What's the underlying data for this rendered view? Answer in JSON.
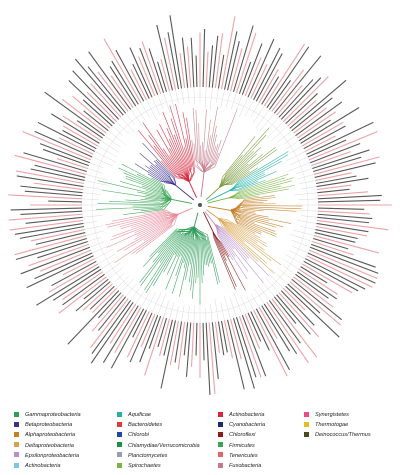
{
  "legend": {
    "columns": [
      [
        {
          "label": "Gammaproteobacteria",
          "color": "#2e9e5a"
        },
        {
          "label": "Betaproteobacteria",
          "color": "#3b2f8f"
        },
        {
          "label": "Alphaproteobacteria",
          "color": "#c77f24"
        },
        {
          "label": "Deltaproteobacteria",
          "color": "#d9a24a"
        },
        {
          "label": "Epsilonproteobacteria",
          "color": "#b88fc9"
        },
        {
          "label": "Actinobacteria",
          "color": "#7fc6e8"
        }
      ],
      [
        {
          "label": "Aquificae",
          "color": "#22b3a5"
        },
        {
          "label": "Bacteroidetes",
          "color": "#e23a3a"
        },
        {
          "label": "Chlorobi",
          "color": "#2048a8"
        },
        {
          "label": "Chlamydiae/Verrucomicrobia",
          "color": "#1f8f46"
        },
        {
          "label": "Planctomycetes",
          "color": "#9aa0a6"
        },
        {
          "label": "Spirochaetes",
          "color": "#7cb342"
        }
      ],
      [
        {
          "label": "Actinobacteria",
          "color": "#d7263d"
        },
        {
          "label": "Cyanobacteria",
          "color": "#1a2a6c"
        },
        {
          "label": "Chloroflexi",
          "color": "#8b1a1a"
        },
        {
          "label": "Firmicutes",
          "color": "#3aa655"
        },
        {
          "label": "Tenericutes",
          "color": "#e06666"
        },
        {
          "label": "Fusobacteria",
          "color": "#c47a8a"
        }
      ],
      [
        {
          "label": "Synergistetes",
          "color": "#e84a8a"
        },
        {
          "label": "Thermotogae",
          "color": "#e3c01c"
        },
        {
          "label": "Deinococcus/Thermus",
          "color": "#4a4a1a"
        }
      ]
    ]
  },
  "tree": {
    "leaf_count": 240,
    "tip_colors": [
      "#e8858a",
      "#222222",
      "#e8858a",
      "#222222",
      "#222222"
    ],
    "clades": [
      {
        "name": "Gammaproteobacteria",
        "color": "#2e9e5a",
        "start_deg": 165,
        "end_deg": 225
      },
      {
        "name": "Firmicutes",
        "color": "#3aa655",
        "start_deg": 262,
        "end_deg": 300
      },
      {
        "name": "Tenericutes",
        "color": "#e88a9a",
        "start_deg": 232,
        "end_deg": 262
      },
      {
        "name": "Betaproteobacteria",
        "color": "#3b2f8f",
        "start_deg": 300,
        "end_deg": 318
      },
      {
        "name": "Actinobacteria",
        "color": "#d7263d",
        "start_deg": 318,
        "end_deg": 352
      },
      {
        "name": "Fusobacteria",
        "color": "#c47a8a",
        "start_deg": 352,
        "end_deg": 382
      },
      {
        "name": "Chlamydiae/Verrucomicrobia",
        "color": "#7a9a3a",
        "start_deg": 38,
        "end_deg": 58
      },
      {
        "name": "Aquificae",
        "color": "#22b3a5",
        "start_deg": 58,
        "end_deg": 70
      },
      {
        "name": "Spirochaetes",
        "color": "#7cb342",
        "start_deg": 70,
        "end_deg": 82
      },
      {
        "name": "Alphaproteobacteria",
        "color": "#c77f24",
        "start_deg": 82,
        "end_deg": 118
      },
      {
        "name": "Deltaproteobacteria",
        "color": "#d9a24a",
        "start_deg": 118,
        "end_deg": 135
      },
      {
        "name": "Epsilonproteobacteria",
        "color": "#b88fc9",
        "start_deg": 135,
        "end_deg": 150
      },
      {
        "name": "Chloroflexi",
        "color": "#8b1a1a",
        "start_deg": 150,
        "end_deg": 158
      }
    ]
  }
}
